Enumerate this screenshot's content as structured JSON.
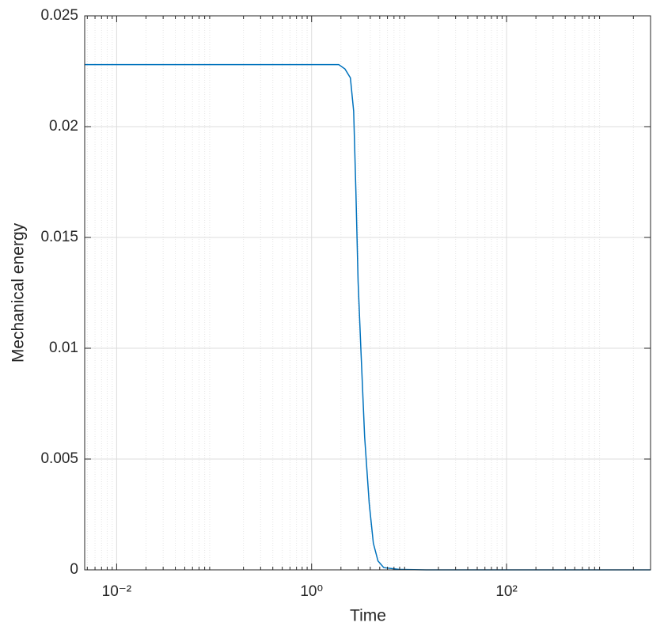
{
  "chart_data": {
    "type": "line",
    "xlabel": "Time",
    "ylabel": "Mechanical energy",
    "xscale": "log",
    "grid": true,
    "minor_grid": true,
    "box": true,
    "xlim": [
      0.0047,
      3000
    ],
    "ylim": [
      0,
      0.025
    ],
    "xticks": [
      {
        "value": 0.01,
        "label": "10⁻²"
      },
      {
        "value": 1,
        "label": "10⁰"
      },
      {
        "value": 100,
        "label": "10²"
      }
    ],
    "yticks": [
      0,
      0.005,
      0.01,
      0.015,
      0.02,
      0.025
    ],
    "x": [
      0.0047,
      1.9,
      2.2,
      2.5,
      2.7,
      2.85,
      3.0,
      3.2,
      3.5,
      3.9,
      4.3,
      4.8,
      5.5,
      8,
      15,
      3000
    ],
    "series": [
      {
        "color": "#0072bd",
        "values": [
          0.0228,
          0.0228,
          0.0226,
          0.0222,
          0.0207,
          0.017,
          0.013,
          0.01,
          0.006,
          0.003,
          0.0012,
          0.0004,
          0.0001,
          2e-05,
          0,
          0
        ]
      }
    ]
  }
}
